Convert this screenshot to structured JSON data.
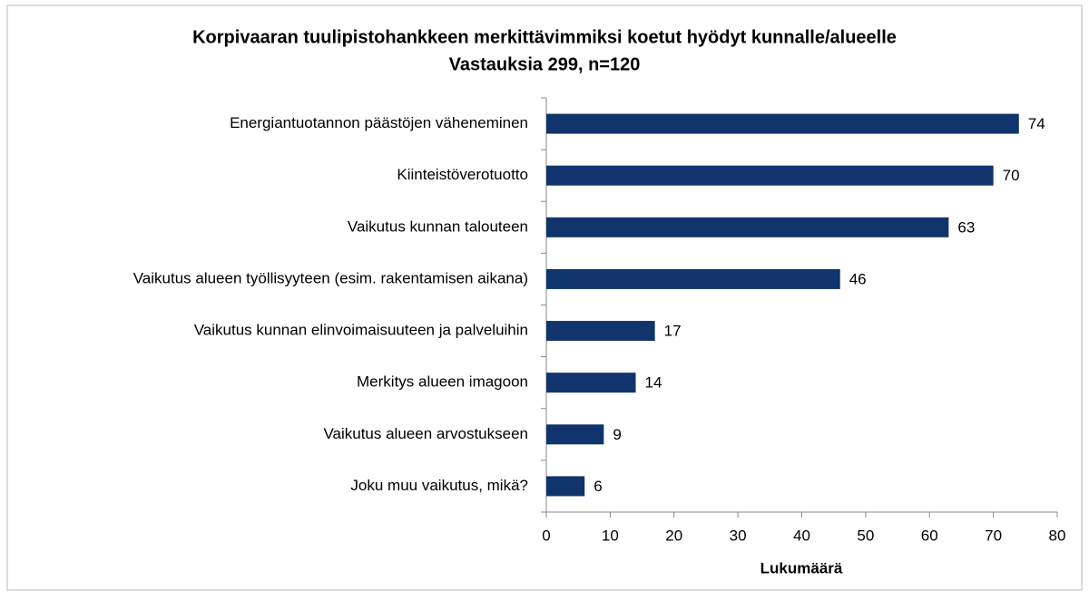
{
  "chart_data": {
    "type": "bar",
    "orientation": "horizontal",
    "title": "Korpivaaran tuulipistohankkeen merkittävimmiksi koetut hyödyt kunnalle/alueelle",
    "subtitle": "Vastauksia 299, n=120",
    "x_label": "Lukumäärä",
    "categories": [
      "Energiantuotannon päästöjen väheneminen",
      "Kiinteistöverotuotto",
      "Vaikutus kunnan talouteen",
      "Vaikutus alueen työllisyyteen (esim. rakentamisen aikana)",
      "Vaikutus kunnan elinvoimaisuuteen ja palveluihin",
      "Merkitys alueen imagoon",
      "Vaikutus alueen arvostukseen",
      "Joku muu vaikutus, mikä?"
    ],
    "values": [
      74,
      70,
      63,
      46,
      17,
      14,
      9,
      6
    ],
    "color": "#10346b",
    "xlim": [
      0,
      80
    ],
    "xticks": [
      0,
      10,
      20,
      30,
      40,
      50,
      60,
      70,
      80
    ],
    "grid": false
  }
}
